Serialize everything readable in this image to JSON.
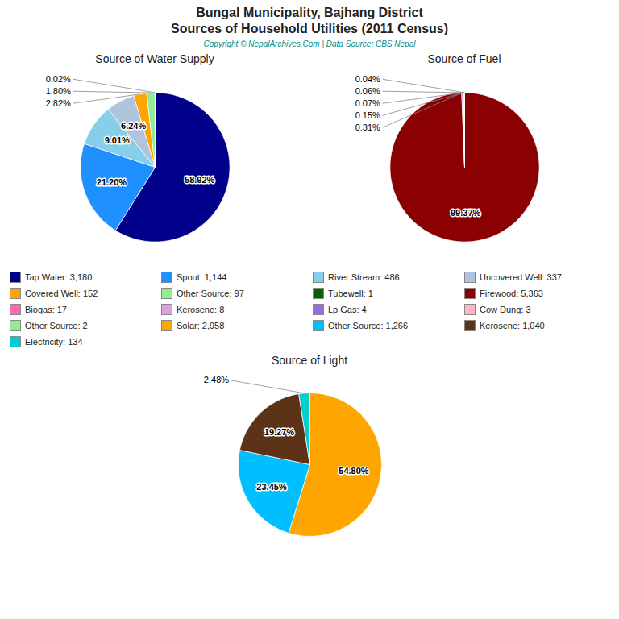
{
  "title": "Bungal Municipality, Bajhang District",
  "subtitle": "Sources of Household Utilities (2011 Census)",
  "annotations": [
    "Copyright © NepalArchives.Com | Data Source: CBS Nepal"
  ],
  "chart_data": [
    {
      "type": "pie",
      "title": "Source of Water Supply",
      "categories": [
        "Tap Water: 3,180",
        "Spout: 1,144",
        "River Stream: 486",
        "Uncovered Well: 337",
        "Covered Well: 152",
        "Other Source: 97",
        "Tubewell: 1"
      ],
      "values": [
        58.92,
        21.2,
        9.01,
        6.24,
        2.82,
        1.8,
        0.02
      ],
      "value_labels": [
        "58.92%",
        "21.20%",
        "9.01%",
        "6.24%",
        "2.82%",
        "1.80%",
        "0.02%"
      ],
      "colors": [
        "#00008B",
        "#1E90FF",
        "#87CEEB",
        "#B0C4DE",
        "#FFA500",
        "#90EE90",
        "#006400"
      ],
      "data_labels": true
    },
    {
      "type": "pie",
      "title": "Source of Fuel",
      "categories": [
        "Firewood: 5,363",
        "Biogas: 17",
        "Kerosene: 8",
        "Lp Gas: 4",
        "Cow Dung: 3",
        "Other Source: 2"
      ],
      "values": [
        99.37,
        0.31,
        0.15,
        0.07,
        0.06,
        0.04
      ],
      "value_labels": [
        "99.37%",
        "0.31%",
        "0.15%",
        "0.07%",
        "0.06%",
        "0.04%"
      ],
      "colors": [
        "#8B0000",
        "#FF69B4",
        "#DDA0DD",
        "#9370DB",
        "#FFB6C1",
        "#90EE90"
      ],
      "data_labels": true
    },
    {
      "type": "pie",
      "title": "Source of Light",
      "categories": [
        "Solar: 2,958",
        "Other Source: 1,266",
        "Kerosene: 1,040",
        "Electricity: 134"
      ],
      "values": [
        54.8,
        23.45,
        19.27,
        2.48
      ],
      "value_labels": [
        "54.80%",
        "23.45%",
        "19.27%",
        "2.48%"
      ],
      "colors": [
        "#FFA500",
        "#00BFFF",
        "#5C3317",
        "#00CED1"
      ],
      "data_labels": true
    }
  ]
}
